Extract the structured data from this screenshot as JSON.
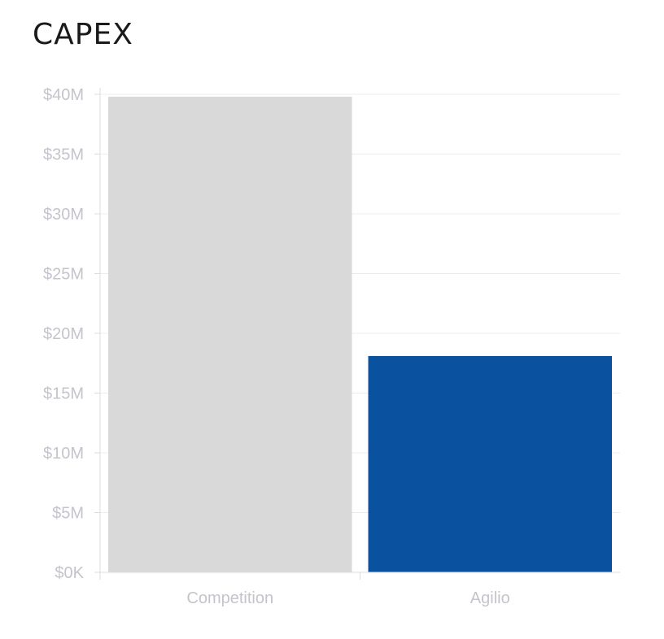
{
  "chart_data": {
    "type": "bar",
    "title": "CAPEX",
    "categories": [
      "Competition",
      "Agilio"
    ],
    "values": [
      39800000,
      18100000
    ],
    "bar_colors": [
      "#d9d9d9",
      "#0a52a0"
    ],
    "ylim": [
      0,
      40000000
    ],
    "y_ticks": [
      0,
      5000000,
      10000000,
      15000000,
      20000000,
      25000000,
      30000000,
      35000000,
      40000000
    ],
    "y_tick_labels": [
      "$0K",
      "$5M",
      "$10M",
      "$15M",
      "$20M",
      "$25M",
      "$30M",
      "$35M",
      "$40M"
    ],
    "xlabel": "",
    "ylabel": "",
    "grid": true,
    "legend": "none"
  },
  "colors": {
    "grid": "#ececee",
    "axis": "#dcdcdf",
    "tick_text": "#c4c4cc",
    "title_text": "#1a1a1a"
  }
}
